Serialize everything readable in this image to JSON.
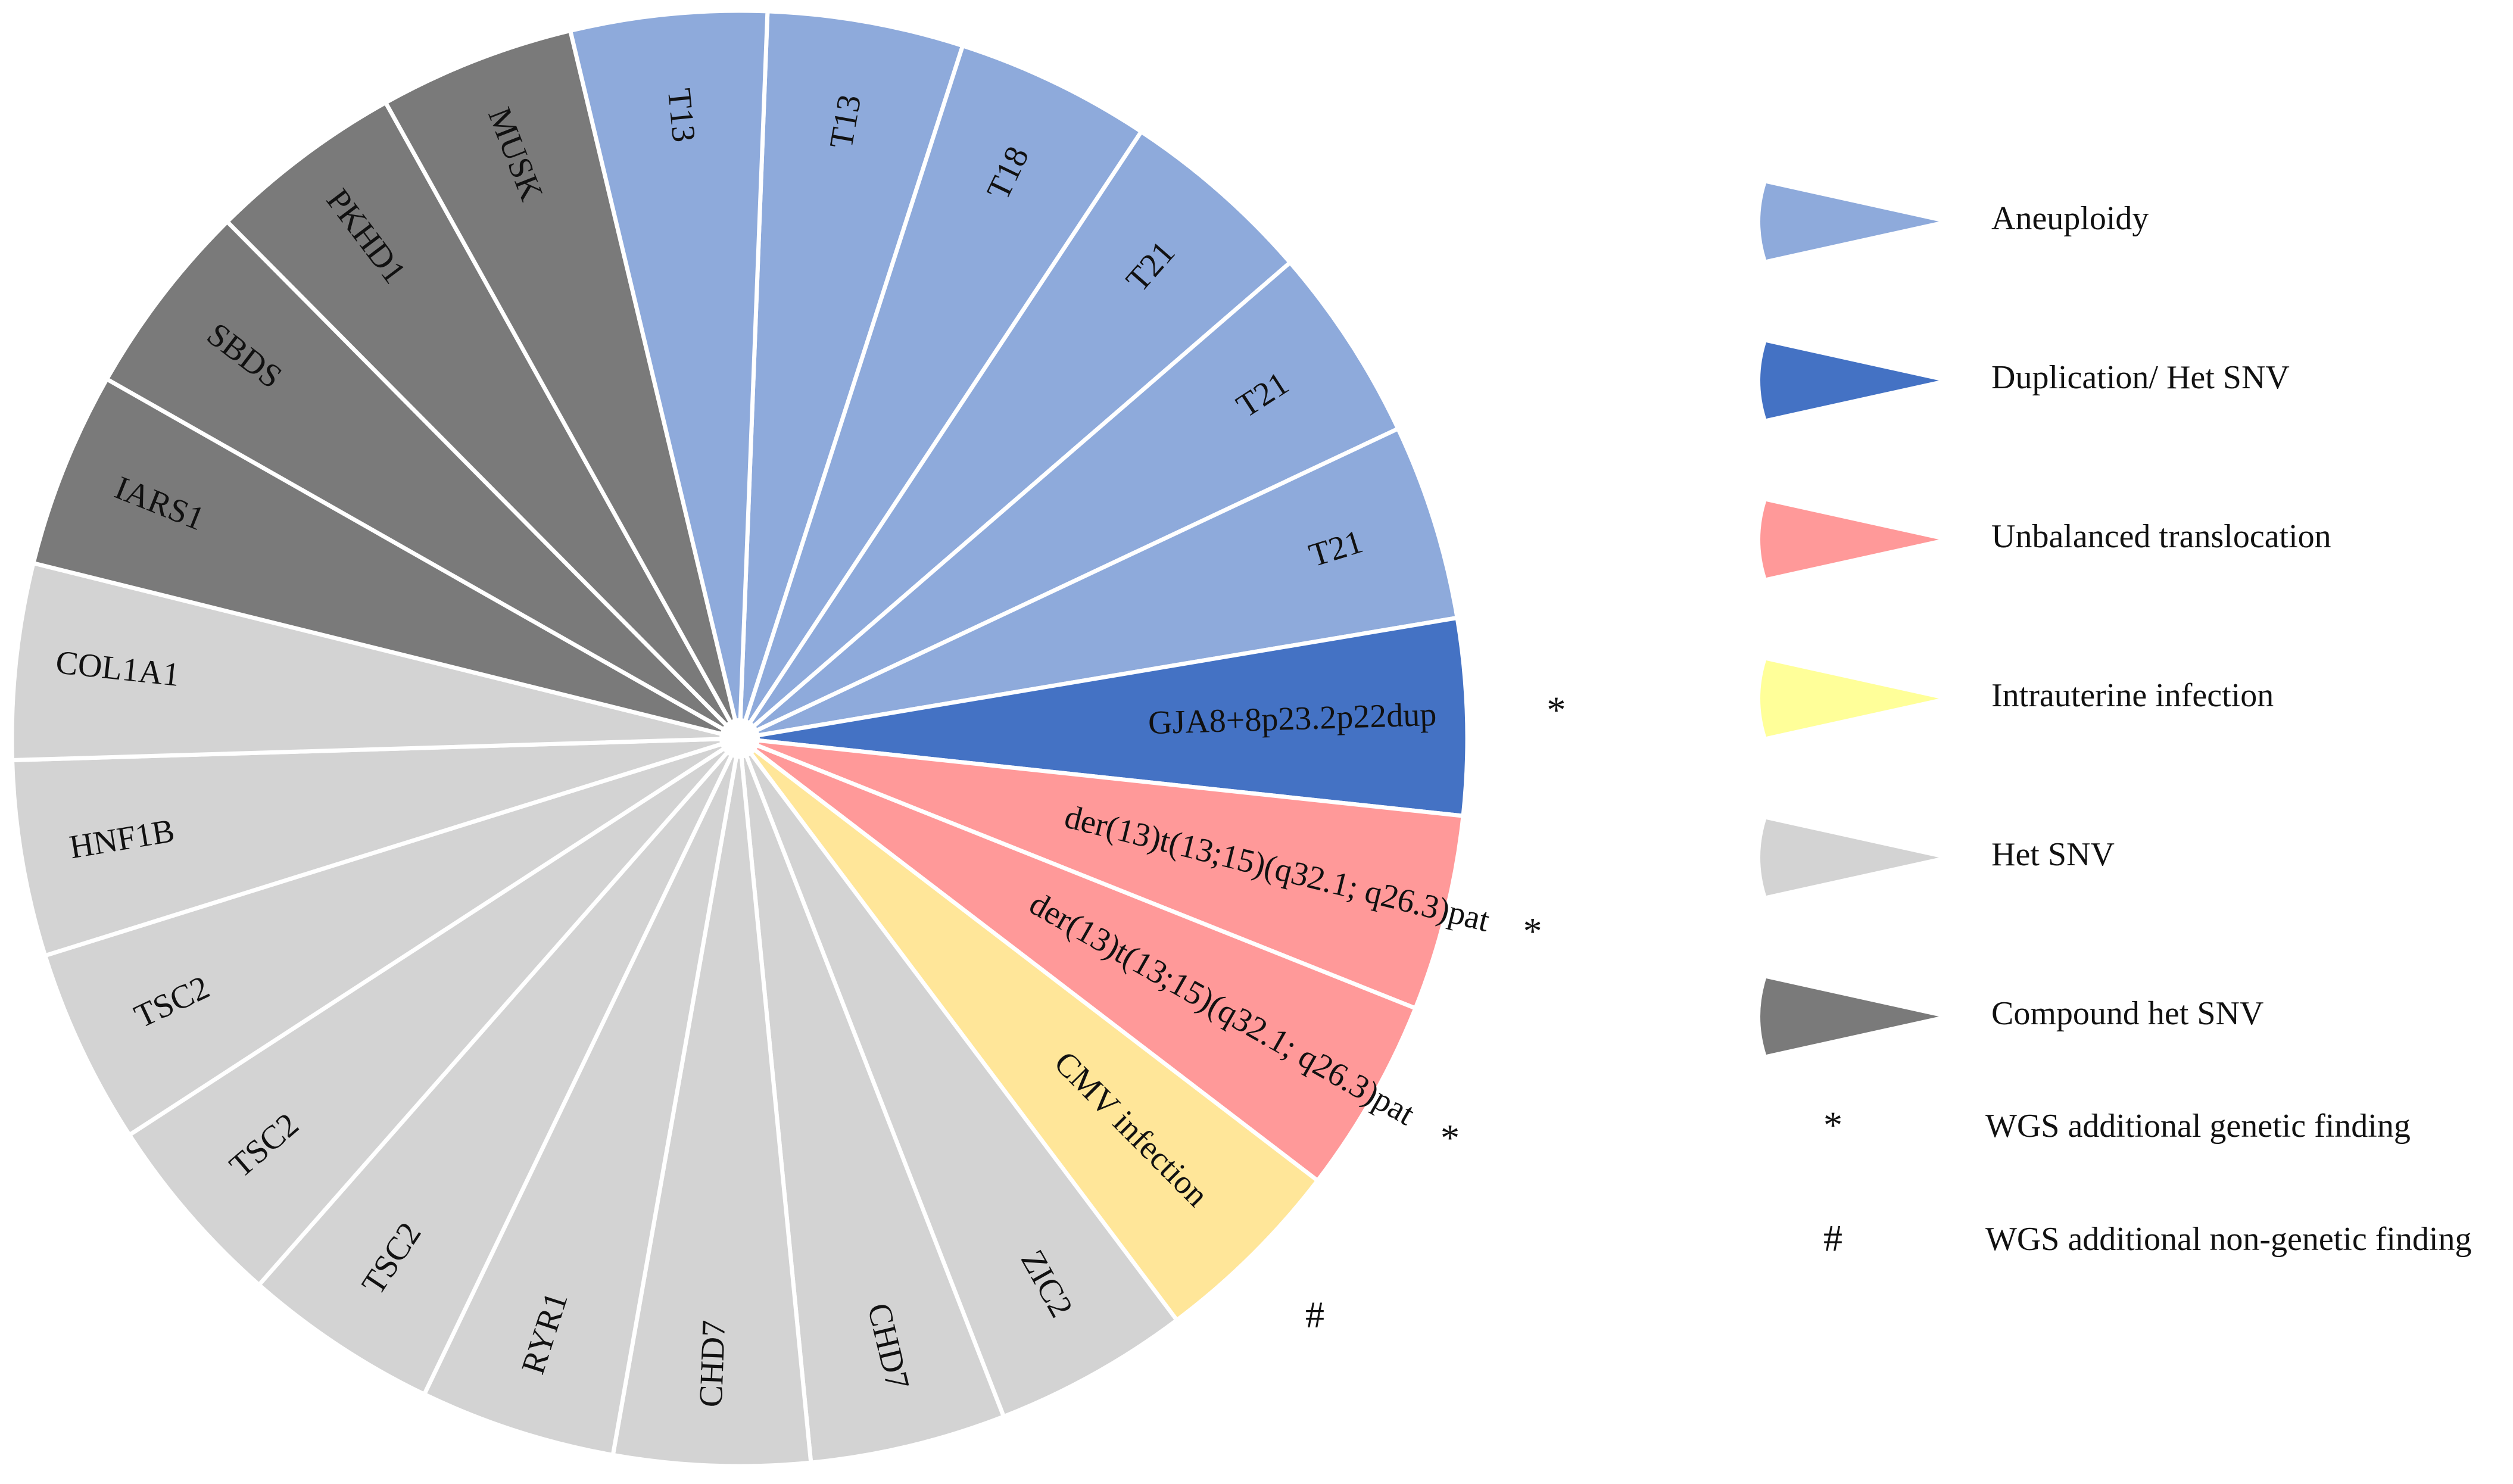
{
  "chart_data": {
    "type": "pie",
    "title": "",
    "categories": [
      {
        "name": "Aneuploidy",
        "color": "#8eaadb"
      },
      {
        "name": "Duplication/ Het SNV",
        "color": "#4472c4"
      },
      {
        "name": "Unbalanced translocation",
        "color": "#ff9999"
      },
      {
        "name": "Intrauterine infection",
        "color": "#ffff99"
      },
      {
        "name": "Het SNV",
        "color": "#d3d3d3"
      },
      {
        "name": "Compound het SNV",
        "color": "#7a7a7a"
      }
    ],
    "slices": [
      {
        "label": "T13",
        "category": "Aneuploidy",
        "value": 1,
        "color": "#8eaadb",
        "marker": ""
      },
      {
        "label": "T18",
        "category": "Aneuploidy",
        "value": 1,
        "color": "#8eaadb",
        "marker": ""
      },
      {
        "label": "T21",
        "category": "Aneuploidy",
        "value": 1,
        "color": "#8eaadb",
        "marker": ""
      },
      {
        "label": "T21",
        "category": "Aneuploidy",
        "value": 1,
        "color": "#8eaadb",
        "marker": ""
      },
      {
        "label": "T21",
        "category": "Aneuploidy",
        "value": 1,
        "color": "#8eaadb",
        "marker": ""
      },
      {
        "label": "GJA8+8p23.2p22dup",
        "category": "Duplication/ Het SNV",
        "value": 1,
        "color": "#4472c4",
        "marker": "*"
      },
      {
        "label": "der(13)t(13;15)(q32.1; q26.3)pat",
        "category": "Unbalanced translocation",
        "value": 1,
        "color": "#ff9999",
        "marker": "*"
      },
      {
        "label": "der(13)t(13;15)(q32.1; q26.3)pat",
        "category": "Unbalanced translocation",
        "value": 1,
        "color": "#ff9999",
        "marker": "*"
      },
      {
        "label": "CMV infection",
        "category": "Intrauterine infection",
        "value": 1,
        "color": "#ffe699",
        "marker": "#"
      },
      {
        "label": "ZIC2",
        "category": "Het SNV",
        "value": 1,
        "color": "#d3d3d3",
        "marker": ""
      },
      {
        "label": "CHD7",
        "category": "Het SNV",
        "value": 1,
        "color": "#d3d3d3",
        "marker": ""
      },
      {
        "label": "CHD7",
        "category": "Het SNV",
        "value": 1,
        "color": "#d3d3d3",
        "marker": ""
      },
      {
        "label": "RYR1",
        "category": "Het SNV",
        "value": 1,
        "color": "#d3d3d3",
        "marker": ""
      },
      {
        "label": "TSC2",
        "category": "Het SNV",
        "value": 1,
        "color": "#d3d3d3",
        "marker": ""
      },
      {
        "label": "TSC2",
        "category": "Het SNV",
        "value": 1,
        "color": "#d3d3d3",
        "marker": ""
      },
      {
        "label": "TSC2",
        "category": "Het SNV",
        "value": 1,
        "color": "#d3d3d3",
        "marker": ""
      },
      {
        "label": "HNF1B",
        "category": "Het SNV",
        "value": 1,
        "color": "#d3d3d3",
        "marker": ""
      },
      {
        "label": "COL1A1",
        "category": "Het SNV",
        "value": 1,
        "color": "#d3d3d3",
        "marker": ""
      },
      {
        "label": "IARS1",
        "category": "Compound het SNV",
        "value": 1,
        "color": "#7a7a7a",
        "marker": ""
      },
      {
        "label": "SBDS",
        "category": "Compound het SNV",
        "value": 1,
        "color": "#7a7a7a",
        "marker": ""
      },
      {
        "label": "PKHD1",
        "category": "Compound het SNV",
        "value": 1,
        "color": "#7a7a7a",
        "marker": ""
      },
      {
        "label": "MUSK",
        "category": "Compound het SNV",
        "value": 1,
        "color": "#7a7a7a",
        "marker": ""
      },
      {
        "label": "T13",
        "category": "Aneuploidy",
        "value": 1,
        "color": "#8eaadb",
        "marker": ""
      }
    ],
    "legend": {
      "placement": "right",
      "items": [
        {
          "label": "Aneuploidy",
          "color": "#8eaadb",
          "icon": "wedge-icon"
        },
        {
          "label": "Duplication/ Het SNV",
          "color": "#4472c4",
          "icon": "wedge-icon"
        },
        {
          "label": "Unbalanced translocation",
          "color": "#ff9999",
          "icon": "wedge-icon"
        },
        {
          "label": "Intrauterine infection",
          "color": "#ffff99",
          "icon": "wedge-icon"
        },
        {
          "label": "Het SNV",
          "color": "#d3d3d3",
          "icon": "wedge-icon"
        },
        {
          "label": "Compound het SNV",
          "color": "#7a7a7a",
          "icon": "wedge-icon"
        }
      ],
      "notes": [
        {
          "symbol": "*",
          "label": "WGS additional genetic finding"
        },
        {
          "symbol": "#",
          "label": "WGS additional non-genetic finding"
        }
      ]
    }
  }
}
